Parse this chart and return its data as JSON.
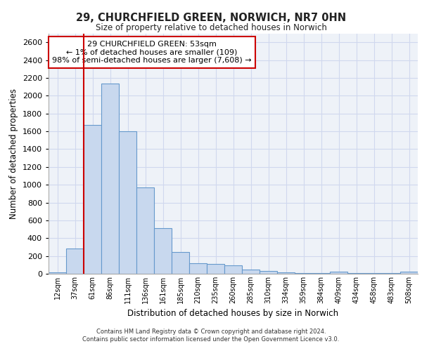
{
  "title": "29, CHURCHFIELD GREEN, NORWICH, NR7 0HN",
  "subtitle": "Size of property relative to detached houses in Norwich",
  "xlabel": "Distribution of detached houses by size in Norwich",
  "ylabel": "Number of detached properties",
  "categories": [
    "12sqm",
    "37sqm",
    "61sqm",
    "86sqm",
    "111sqm",
    "136sqm",
    "161sqm",
    "185sqm",
    "210sqm",
    "235sqm",
    "260sqm",
    "285sqm",
    "310sqm",
    "334sqm",
    "359sqm",
    "384sqm",
    "409sqm",
    "434sqm",
    "458sqm",
    "483sqm",
    "508sqm"
  ],
  "values": [
    15,
    280,
    1670,
    2140,
    1600,
    970,
    510,
    245,
    120,
    110,
    95,
    45,
    30,
    15,
    10,
    5,
    20,
    5,
    5,
    5,
    20
  ],
  "bar_color": "#c8d8ee",
  "bar_edge_color": "#6699cc",
  "vline_color": "#cc0000",
  "annotation_text": "29 CHURCHFIELD GREEN: 53sqm\n← 1% of detached houses are smaller (109)\n98% of semi-detached houses are larger (7,608) →",
  "annotation_box_color": "#ffffff",
  "annotation_box_edge": "#cc0000",
  "ylim": [
    0,
    2700
  ],
  "yticks": [
    0,
    200,
    400,
    600,
    800,
    1000,
    1200,
    1400,
    1600,
    1800,
    2000,
    2200,
    2400,
    2600
  ],
  "grid_color": "#d0d8ee",
  "bg_color": "#eef2f8",
  "footer_line1": "Contains HM Land Registry data © Crown copyright and database right 2024.",
  "footer_line2": "Contains public sector information licensed under the Open Government Licence v3.0."
}
